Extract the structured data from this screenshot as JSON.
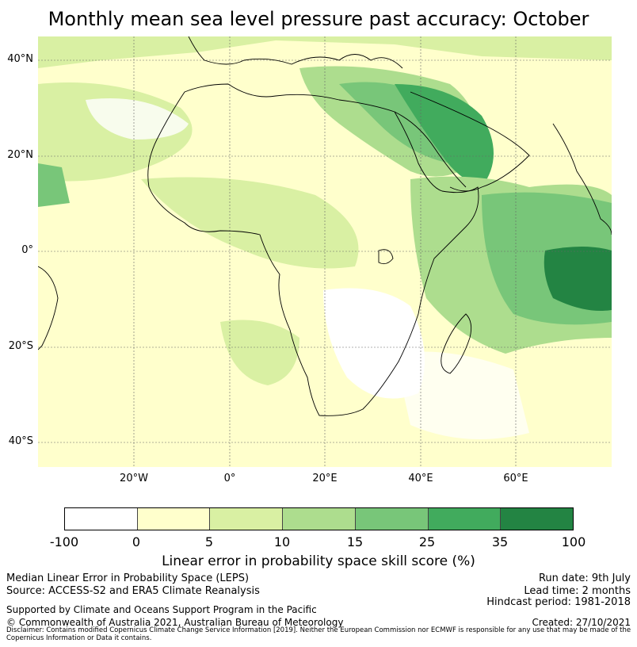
{
  "title": "Monthly mean sea level pressure past accuracy: October",
  "map": {
    "lat_labels": [
      "40°N",
      "20°N",
      "0°",
      "20°S",
      "40°S"
    ],
    "lon_labels": [
      "20°W",
      "0°",
      "20°E",
      "40°E",
      "60°E"
    ]
  },
  "colorbar": {
    "colors": [
      "#ffffff",
      "#ffffcc",
      "#d9f0a3",
      "#addd8e",
      "#78c679",
      "#41ab5d",
      "#238443"
    ],
    "ticks": [
      "-100",
      "0",
      "5",
      "10",
      "15",
      "25",
      "35",
      "100"
    ],
    "label": "Linear error in probability space skill score (%)"
  },
  "footer": {
    "left_line1": "Median Linear Error in Probability Space (LEPS)",
    "left_line2": "Source: ACCESS-S2 and ERA5 Climate Reanalysis",
    "right_line1": "Run date: 9th July",
    "right_line2": "Lead time: 2 months",
    "right_line3": "Hindcast period: 1981-2018",
    "supported": "Supported by Climate and Oceans Support Program in the Pacific",
    "copyright": "© Commonwealth of Australia 2021, Australian Bureau of Meteorology",
    "created": "Created: 27/10/2021",
    "disclaimer": "Disclaimer: Contains modified Copernicus Climate Change Service Information [2019]. Neither the European Commission nor ECMWF is responsible for any use that may be made of the Copernicus Information or Data it contains."
  }
}
